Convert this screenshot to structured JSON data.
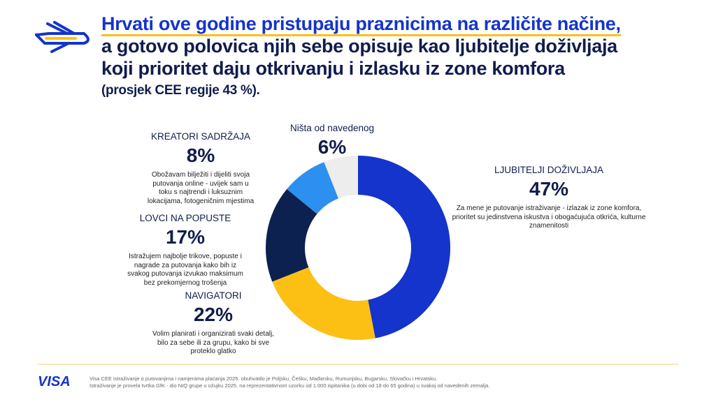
{
  "header": {
    "title_highlight": "Hrvati ove godine pristupaju praznicima na različite načine,",
    "title_line2": "a gotovo polovica njih sebe opisuje kao ljubitelje doživljaja",
    "title_line3": "koji prioritet daju otkrivanju i izlasku iz zone komfora",
    "subtitle": "(prosjek CEE regije 43 %)."
  },
  "chart_data": {
    "type": "pie",
    "donut": true,
    "start": "top",
    "direction": "clockwise",
    "categories": [
      "LJUBITELJI DOŽIVLJAJA",
      "NAVIGATORI",
      "LOVCI NA POPUSTE",
      "KREATORI SADRŽAJA",
      "Ništa od navedenog"
    ],
    "values": [
      47,
      22,
      17,
      8,
      6
    ],
    "value_labels": [
      "47%",
      "22%",
      "17%",
      "8%",
      "6%"
    ],
    "colors": [
      "#1434cb",
      "#fcc015",
      "#0d2150",
      "#2d8ff0",
      "#ededed"
    ],
    "descriptions": [
      "Za mene je putovanje istraživanje - izlazak iz zone komfora, prioritet su jedinstvena iskustva i obogaćujuća otkrića, kulturne znamenitosti",
      "Volim planirati i organizirati svaki detalj, bilo za sebe ili za grupu, kako bi sve proteklo glatko",
      "Istražujem najbolje trikove, popuste i nagrade za putovanja kako bih iz svakog putovanja izvukao maksimum bez prekomjernog trošenja",
      "Obožavam bilježiti i dijeliti svoja putovanja online - uvijek sam u toku s najtrendi i luksuznim lokacijama, fotogeničnim mjestima",
      ""
    ]
  },
  "footer": {
    "logo": "VISA",
    "line1": "Visa CEE istraživanje o putovanjima i namjerama plaćanja 2025. obuhvatilo je Poljsku, Češku, Mađarsku, Rumunjsku, Bugarsku, Slovačku i Hrvatsku.",
    "line2": "Istraživanje je provela tvrtka GfK - dio NIQ grupe u ožujku 2025. na reprezentativnom uzorku od 1.000 ispitanika (u dobi od 18 do 65 godina) u svakoj od navedenih zemalja."
  },
  "icons": {
    "logo": "airplane-icon"
  }
}
